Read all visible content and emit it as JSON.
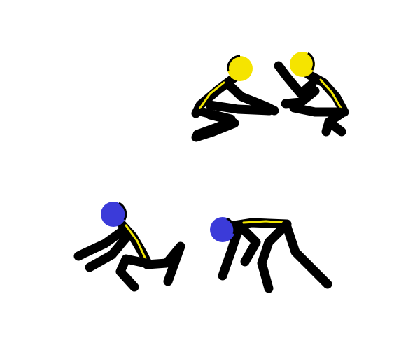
{
  "scene": {
    "background_color": "#ffffff",
    "figures": [
      {
        "id": "figure-1",
        "pose": "crouching-facing-right",
        "head_color": "#f5e400",
        "body_color": "#000000",
        "stripe_color": "#f2e600"
      },
      {
        "id": "figure-2",
        "pose": "crouching-facing-left-arm-raised",
        "head_color": "#f5e400",
        "body_color": "#000000",
        "stripe_color": "#f2e600"
      },
      {
        "id": "figure-3",
        "pose": "squatting-leaning-back",
        "head_color": "#3b3bd9",
        "body_color": "#000000",
        "stripe_color": "#f2e600"
      },
      {
        "id": "figure-4",
        "pose": "bent-over-on-all-fours",
        "head_color": "#3b3bd9",
        "body_color": "#000000",
        "stripe_color": "#f2e600"
      }
    ]
  }
}
